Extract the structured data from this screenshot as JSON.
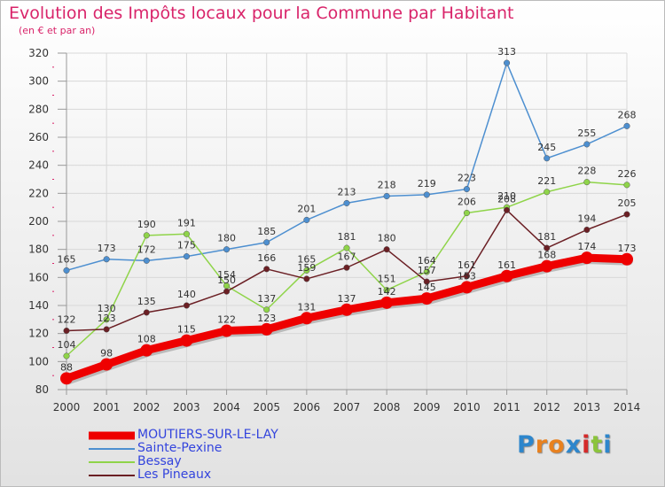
{
  "header": {
    "title": "Evolution des Impôts locaux pour la Commune par Habitant",
    "subtitle": "(en € et par an)"
  },
  "chart_data": {
    "type": "line",
    "title": "Evolution des Impôts locaux pour la Commune par Habitant",
    "subtitle": "(en € et par an)",
    "xlabel": "",
    "ylabel": "",
    "x": [
      "2000",
      "2001",
      "2002",
      "2003",
      "2004",
      "2005",
      "2006",
      "2007",
      "2008",
      "2009",
      "2010",
      "2011",
      "2012",
      "2013",
      "2014"
    ],
    "ylim": [
      80,
      320
    ],
    "yticks": [
      80,
      100,
      120,
      140,
      160,
      180,
      200,
      220,
      240,
      260,
      280,
      300,
      320
    ],
    "grid": true,
    "legend_position": "bottom-left",
    "series": [
      {
        "name": "MOUTIERS-SUR-LE-LAY",
        "color": "#ee0000",
        "emphasis": true,
        "values": [
          88,
          98,
          108,
          115,
          122,
          123,
          131,
          137,
          142,
          145,
          153,
          161,
          168,
          174,
          173
        ]
      },
      {
        "name": "Sainte-Pexine",
        "color": "#4d8fd0",
        "emphasis": false,
        "values": [
          165,
          173,
          172,
          175,
          180,
          185,
          201,
          213,
          218,
          219,
          223,
          313,
          245,
          255,
          268
        ]
      },
      {
        "name": "Bessay",
        "color": "#8fd449",
        "emphasis": false,
        "values": [
          104,
          130,
          190,
          191,
          154,
          137,
          165,
          181,
          151,
          164,
          206,
          210,
          221,
          228,
          226
        ]
      },
      {
        "name": "Les Pineaux",
        "color": "#6b1f24",
        "emphasis": false,
        "values": [
          122,
          123,
          135,
          140,
          150,
          166,
          159,
          167,
          180,
          157,
          161,
          208,
          181,
          194,
          205
        ]
      }
    ]
  },
  "logo": {
    "text": "Proxiti",
    "letter_colors": [
      "#2d86cc",
      "#e8811f",
      "#e8811f",
      "#2d86cc",
      "#d42a2a",
      "#8bc43c",
      "#2d86cc"
    ]
  }
}
